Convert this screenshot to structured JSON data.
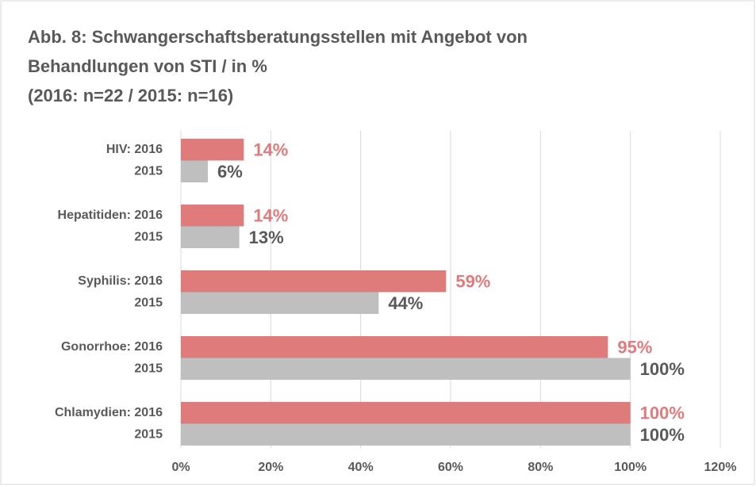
{
  "chart_data": {
    "type": "hbar",
    "title": [
      "Abb. 8: Schwangerschaftsberatungsstellen mit Angebot von",
      "Behandlungen von STI / in %",
      "(2016: n=22 / 2015: n=16)"
    ],
    "categories": [
      "HIV: 2016",
      "2015",
      "Hepatitiden: 2016",
      "2015",
      "Syphilis: 2016",
      "2015",
      "Gonorrhoe: 2016",
      "2015",
      "Chlamydien: 2016",
      "2015"
    ],
    "values": [
      14,
      6,
      14,
      13,
      59,
      44,
      95,
      100,
      100,
      100
    ],
    "value_labels": [
      "14%",
      "6%",
      "14%",
      "13%",
      "59%",
      "44%",
      "95%",
      "100%",
      "100%",
      "100%"
    ],
    "colors": [
      "#e07b7b",
      "#bfbfbf",
      "#e07b7b",
      "#bfbfbf",
      "#e07b7b",
      "#bfbfbf",
      "#e07b7b",
      "#bfbfbf",
      "#e07b7b",
      "#bfbfbf"
    ],
    "label_colors": [
      "#e07b7b",
      "#595959",
      "#e07b7b",
      "#595959",
      "#e07b7b",
      "#595959",
      "#e07b7b",
      "#595959",
      "#e07b7b",
      "#595959"
    ],
    "xlim": [
      0,
      120
    ],
    "xticks": [
      {
        "value": 0,
        "label": "0%"
      },
      {
        "value": 20,
        "label": "20%"
      },
      {
        "value": 40,
        "label": "40%"
      },
      {
        "value": 60,
        "label": "60%"
      },
      {
        "value": 80,
        "label": "80%"
      },
      {
        "value": 100,
        "label": "100%"
      },
      {
        "value": 120,
        "label": "120%"
      }
    ],
    "grid": true
  }
}
